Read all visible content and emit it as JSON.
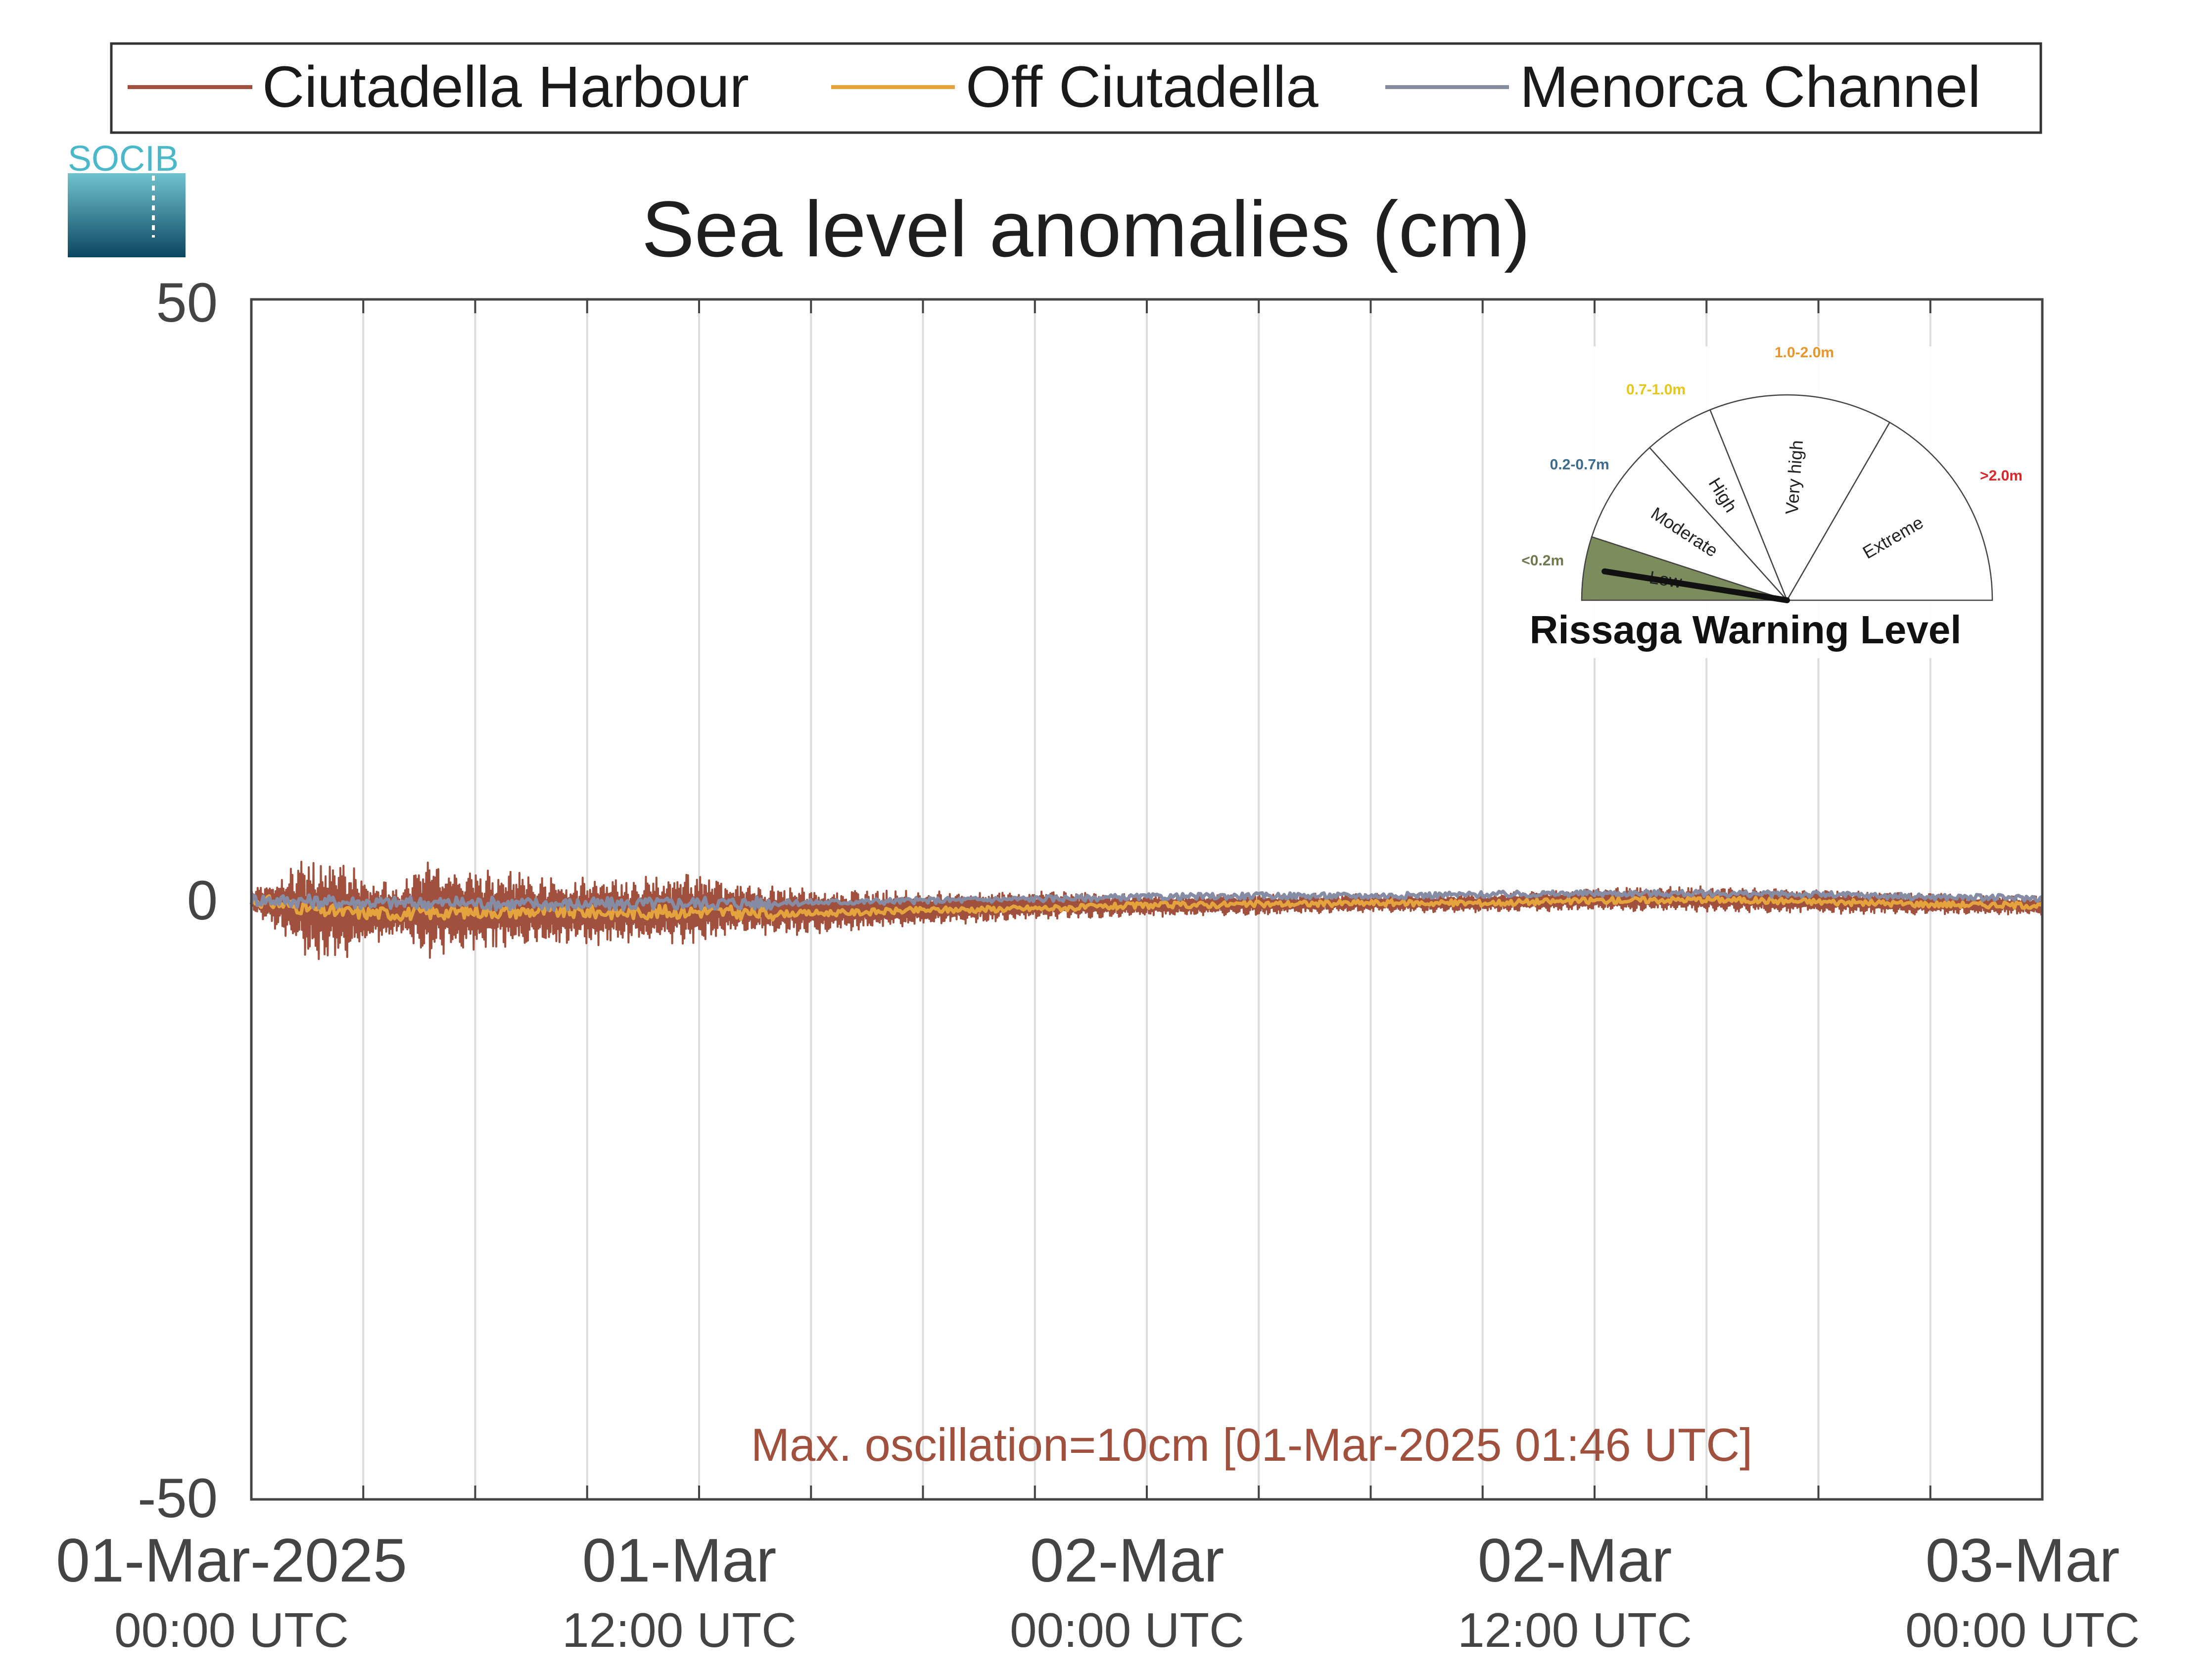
{
  "chart_data": {
    "type": "line",
    "title": "Sea level anomalies (cm)",
    "xlabel": "",
    "ylabel": "",
    "ylim": [
      -50,
      50
    ],
    "yticks": [
      "50",
      "0",
      "-50"
    ],
    "x_range": [
      "2025-03-01 00:00 UTC",
      "2025-03-03 00:00 UTC"
    ],
    "xticks": [
      {
        "line1": "01-Mar-2025",
        "line2": "00:00 UTC",
        "hours": 0
      },
      {
        "line1": "01-Mar",
        "line2": "12:00 UTC",
        "hours": 12
      },
      {
        "line1": "02-Mar",
        "line2": "00:00 UTC",
        "hours": 24
      },
      {
        "line1": "02-Mar",
        "line2": "12:00 UTC",
        "hours": 36
      },
      {
        "line1": "03-Mar",
        "line2": "00:00 UTC",
        "hours": 48
      }
    ],
    "grid": "vertical lines every 3 hours",
    "legend_position": "top",
    "series": [
      {
        "name": "Ciutadella Harbour",
        "color": "#a0503c",
        "approx_oscillation_envelope_cm": {
          "hours": [
            0,
            1,
            1.76,
            2.5,
            4,
            4.5,
            6,
            8,
            10,
            12,
            13,
            15,
            18,
            21,
            24,
            27,
            30,
            33,
            36,
            39,
            42,
            45,
            48
          ],
          "amplitude": [
            1,
            3,
            5,
            4,
            2,
            4.5,
            3.5,
            3,
            2.8,
            3,
            2.2,
            2,
            1.5,
            1.2,
            1,
            0.9,
            0.8,
            0.8,
            1,
            1.1,
            1,
            0.9,
            0.8
          ],
          "mean": [
            0,
            -0.5,
            -1,
            -1,
            -1,
            -0.8,
            -0.8,
            -1,
            -1,
            -0.8,
            -0.8,
            -1,
            -0.8,
            -0.5,
            -0.5,
            -0.4,
            -0.3,
            -0.3,
            0,
            0,
            -0.2,
            -0.4,
            -0.5
          ]
        }
      },
      {
        "name": "Off Ciutadella",
        "color": "#e6a23c",
        "approx_level_cm": {
          "hours": [
            0,
            2,
            4,
            6,
            8,
            10,
            12,
            14,
            16,
            18,
            20,
            22,
            24,
            27,
            30,
            33,
            36,
            39,
            42,
            45,
            48
          ],
          "values": [
            0,
            -1,
            -1.2,
            -1,
            -1,
            -1.1,
            -1,
            -1.2,
            -1.1,
            -0.9,
            -0.8,
            -0.7,
            -0.5,
            -0.4,
            -0.3,
            -0.3,
            -0.1,
            0,
            -0.2,
            -0.4,
            -0.5
          ]
        }
      },
      {
        "name": "Menorca Channel",
        "color": "#858ca3",
        "approx_level_cm": {
          "hours": [
            0,
            2,
            4,
            6,
            8,
            10,
            12,
            14,
            16,
            18,
            20,
            22,
            24,
            27,
            30,
            33,
            36,
            39,
            42,
            45,
            48
          ],
          "values": [
            0,
            -0.2,
            -0.3,
            -0.3,
            -0.4,
            -0.4,
            -0.3,
            -0.3,
            -0.2,
            -0.1,
            0,
            0.1,
            0.2,
            0.3,
            0.3,
            0.4,
            0.5,
            0.5,
            0.4,
            0.2,
            0.1
          ]
        }
      }
    ],
    "annotation": {
      "text": "Max. oscillation=10cm [01-Mar-2025 01:46 UTC]",
      "color": "#a0503c"
    }
  },
  "logo": {
    "text": "SOCIB",
    "color": "#4ab8c9"
  },
  "gauge": {
    "title": "Rissaga Warning Level",
    "needle_level": "Low",
    "levels": [
      {
        "name": "Low",
        "range": "<0.2m",
        "range_color": "#6e7a4e",
        "fill": "#7c8c5c"
      },
      {
        "name": "Moderate",
        "range": "0.2-0.7m",
        "range_color": "#3d6b8c",
        "fill": "#ffffff"
      },
      {
        "name": "High",
        "range": "0.7-1.0m",
        "range_color": "#e6c619",
        "fill": "#ffffff"
      },
      {
        "name": "Very high",
        "range": "1.0-2.0m",
        "range_color": "#e8962a",
        "fill": "#ffffff"
      },
      {
        "name": "Extreme",
        "range": ">2.0m",
        "range_color": "#d9262b",
        "fill": "#ffffff"
      }
    ]
  }
}
